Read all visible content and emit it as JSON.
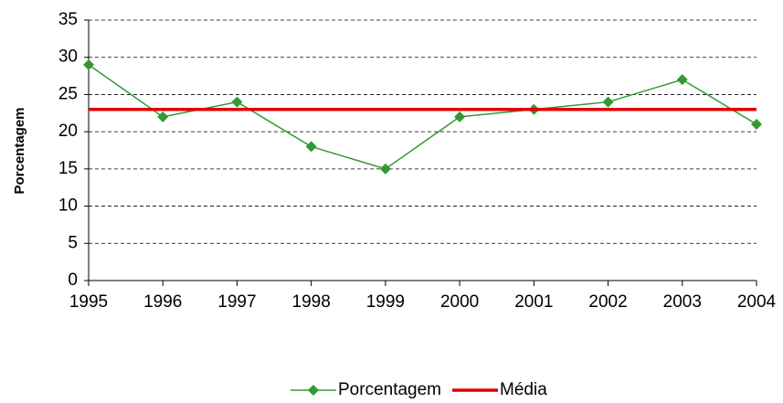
{
  "chart_data": {
    "type": "line",
    "x": [
      1995,
      1996,
      1997,
      1998,
      1999,
      2000,
      2001,
      2002,
      2003,
      2004
    ],
    "xlim": [
      1995,
      2004
    ],
    "xticks": [
      1995,
      1996,
      1997,
      1998,
      1999,
      2000,
      2001,
      2002,
      2003,
      2004
    ],
    "ylim": [
      0,
      35
    ],
    "yticks": [
      0,
      5,
      10,
      15,
      20,
      25,
      30,
      35
    ],
    "y_label": "Porcentagem",
    "grid": true,
    "legend": "bottom",
    "series": [
      {
        "name": "Porcentagem",
        "color": "#339933",
        "marker": "diamond",
        "values": [
          29,
          22,
          24,
          18,
          15,
          22,
          23,
          24,
          27,
          21
        ]
      },
      {
        "name": "Média",
        "color": "#dd0000",
        "values": [
          23,
          23,
          23,
          23,
          23,
          23,
          23,
          23,
          23,
          23
        ]
      }
    ]
  }
}
